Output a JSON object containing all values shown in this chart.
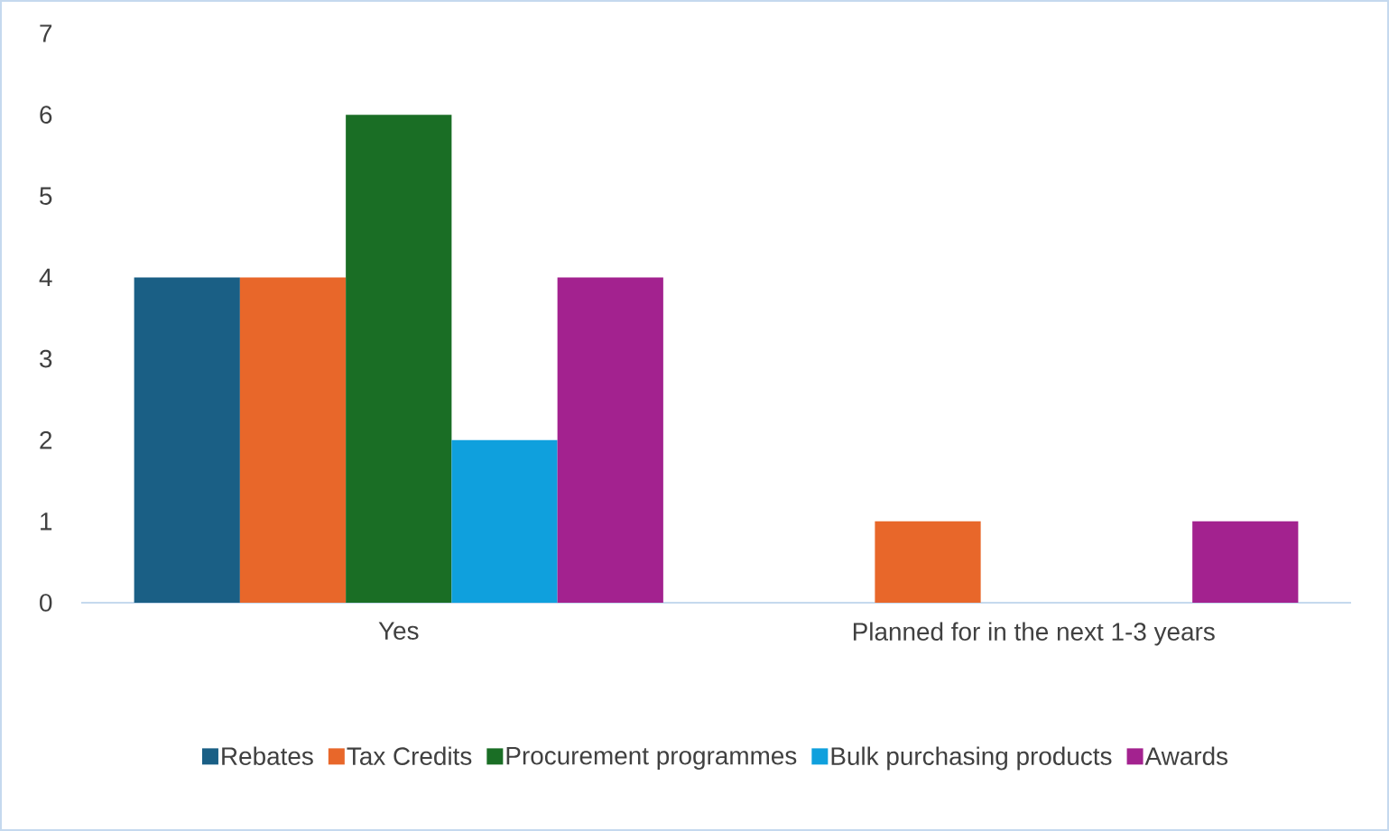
{
  "chart_data": {
    "type": "bar",
    "categories": [
      "Yes",
      "Planned for in the next 1-3 years"
    ],
    "series": [
      {
        "name": "Rebates",
        "color": "#1a5f85",
        "values": [
          4,
          null
        ]
      },
      {
        "name": "Tax Credits",
        "color": "#e8672a",
        "values": [
          4,
          1
        ]
      },
      {
        "name": "Procurement programmes",
        "color": "#1a6e25",
        "values": [
          6,
          null
        ]
      },
      {
        "name": "Bulk purchasing products",
        "color": "#0fa0dd",
        "values": [
          2,
          null
        ]
      },
      {
        "name": "Awards",
        "color": "#a3228f",
        "values": [
          4,
          1
        ]
      }
    ],
    "ylim": [
      0,
      7
    ],
    "yticks": [
      0,
      1,
      2,
      3,
      4,
      5,
      6,
      7
    ],
    "legend": "bottom"
  }
}
